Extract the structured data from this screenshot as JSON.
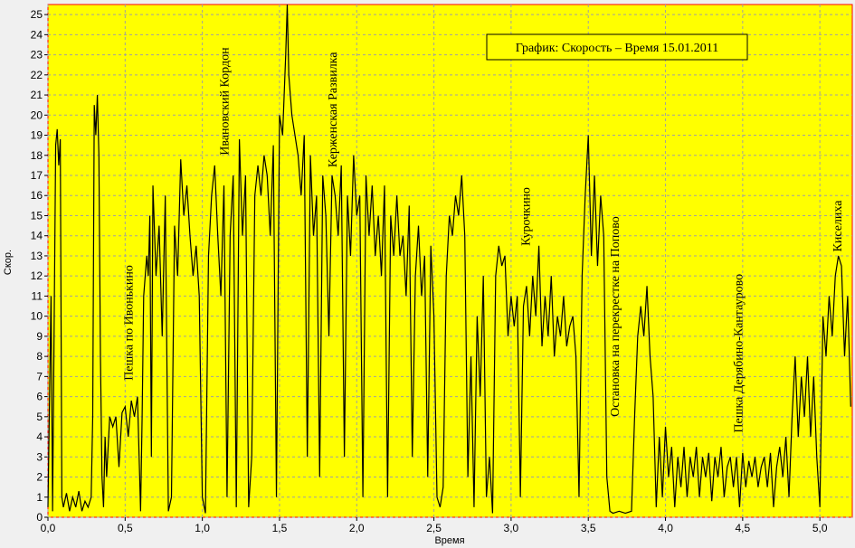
{
  "chart_data": {
    "type": "line",
    "title": "График: Скорость – Время 15.01.2011",
    "x_label": "Время",
    "y_label": "Скор.",
    "xlim": [
      0,
      5.21
    ],
    "ylim": [
      0,
      25.5
    ],
    "xticks": [
      {
        "value": 0,
        "label": "0,0"
      },
      {
        "value": 0.5,
        "label": "0,5"
      },
      {
        "value": 1,
        "label": "1,0"
      },
      {
        "value": 1.5,
        "label": "1,5"
      },
      {
        "value": 2,
        "label": "2,0"
      },
      {
        "value": 2.5,
        "label": "2,5"
      },
      {
        "value": 3,
        "label": "3,0"
      },
      {
        "value": 3.5,
        "label": "3,5"
      },
      {
        "value": 4,
        "label": "4,0"
      },
      {
        "value": 4.5,
        "label": "4,5"
      },
      {
        "value": 5,
        "label": "5,0"
      }
    ],
    "yticks": [
      0,
      1,
      2,
      3,
      4,
      5,
      6,
      7,
      8,
      9,
      10,
      11,
      12,
      13,
      14,
      15,
      16,
      17,
      18,
      19,
      20,
      21,
      22,
      23,
      24,
      25
    ],
    "grid": true,
    "background": "#ffff00",
    "annotations": [
      {
        "text": "Пешка по Ивонькино",
        "x": 0.52,
        "y": 6.8
      },
      {
        "text": "Ивановский Кордон",
        "x": 1.14,
        "y": 18
      },
      {
        "text": "Керженская Развилка",
        "x": 1.84,
        "y": 17.4
      },
      {
        "text": "Курочкино",
        "x": 3.09,
        "y": 13.5
      },
      {
        "text": "Остановка на перекрестке на Попово",
        "x": 3.67,
        "y": 5
      },
      {
        "text": "Пешка Дерябино-Кантаурово",
        "x": 4.47,
        "y": 4.2
      },
      {
        "text": "Киселиха",
        "x": 5.11,
        "y": 13.2
      }
    ],
    "x": [
      0,
      0.02,
      0.03,
      0.05,
      0.06,
      0.07,
      0.08,
      0.09,
      0.1,
      0.12,
      0.14,
      0.16,
      0.18,
      0.2,
      0.22,
      0.24,
      0.26,
      0.28,
      0.29,
      0.3,
      0.31,
      0.32,
      0.33,
      0.34,
      0.35,
      0.36,
      0.37,
      0.38,
      0.4,
      0.42,
      0.44,
      0.46,
      0.48,
      0.5,
      0.52,
      0.54,
      0.56,
      0.58,
      0.6,
      0.61,
      0.62,
      0.64,
      0.65,
      0.66,
      0.67,
      0.68,
      0.7,
      0.72,
      0.74,
      0.76,
      0.78,
      0.8,
      0.82,
      0.84,
      0.86,
      0.88,
      0.9,
      0.92,
      0.94,
      0.96,
      0.98,
      1,
      1.02,
      1.04,
      1.06,
      1.08,
      1.1,
      1.12,
      1.14,
      1.16,
      1.18,
      1.2,
      1.22,
      1.24,
      1.26,
      1.28,
      1.3,
      1.32,
      1.34,
      1.36,
      1.38,
      1.4,
      1.42,
      1.44,
      1.46,
      1.48,
      1.5,
      1.52,
      1.54,
      1.55,
      1.56,
      1.58,
      1.6,
      1.62,
      1.64,
      1.66,
      1.68,
      1.7,
      1.72,
      1.74,
      1.76,
      1.78,
      1.8,
      1.82,
      1.84,
      1.86,
      1.88,
      1.9,
      1.92,
      1.94,
      1.96,
      1.98,
      2,
      2.02,
      2.04,
      2.06,
      2.08,
      2.1,
      2.12,
      2.14,
      2.16,
      2.18,
      2.2,
      2.22,
      2.24,
      2.26,
      2.28,
      2.3,
      2.32,
      2.34,
      2.36,
      2.38,
      2.4,
      2.42,
      2.44,
      2.46,
      2.48,
      2.5,
      2.52,
      2.54,
      2.56,
      2.58,
      2.6,
      2.62,
      2.64,
      2.66,
      2.68,
      2.7,
      2.72,
      2.74,
      2.76,
      2.78,
      2.8,
      2.82,
      2.84,
      2.86,
      2.88,
      2.9,
      2.92,
      2.94,
      2.96,
      2.98,
      3,
      3.02,
      3.04,
      3.06,
      3.08,
      3.1,
      3.12,
      3.14,
      3.16,
      3.18,
      3.2,
      3.22,
      3.24,
      3.26,
      3.28,
      3.3,
      3.32,
      3.34,
      3.36,
      3.38,
      3.4,
      3.42,
      3.44,
      3.46,
      3.48,
      3.5,
      3.52,
      3.54,
      3.56,
      3.58,
      3.6,
      3.62,
      3.64,
      3.66,
      3.7,
      3.74,
      3.78,
      3.8,
      3.82,
      3.84,
      3.86,
      3.88,
      3.9,
      3.92,
      3.94,
      3.96,
      3.98,
      4,
      4.02,
      4.04,
      4.06,
      4.08,
      4.1,
      4.12,
      4.14,
      4.16,
      4.18,
      4.2,
      4.22,
      4.24,
      4.26,
      4.28,
      4.3,
      4.32,
      4.34,
      4.36,
      4.38,
      4.4,
      4.42,
      4.44,
      4.46,
      4.48,
      4.5,
      4.52,
      4.54,
      4.56,
      4.58,
      4.6,
      4.62,
      4.64,
      4.66,
      4.68,
      4.7,
      4.72,
      4.74,
      4.76,
      4.78,
      4.8,
      4.82,
      4.84,
      4.86,
      4.88,
      4.9,
      4.92,
      4.94,
      4.96,
      4.98,
      5,
      5.02,
      5.04,
      5.06,
      5.08,
      5.1,
      5.12,
      5.14,
      5.16,
      5.18,
      5.2
    ],
    "series": [
      {
        "color": "#000000",
        "values": [
          0.5,
          11,
          0.3,
          18.5,
          19.3,
          17.5,
          18.8,
          1,
          0.5,
          1.2,
          0.3,
          1,
          0.5,
          1.3,
          0.3,
          0.8,
          0.5,
          1,
          5,
          20.5,
          19,
          21,
          18,
          8,
          2,
          0.5,
          4,
          2,
          5,
          4.5,
          5,
          2.5,
          5.2,
          5.5,
          4,
          5.8,
          5,
          6,
          0.3,
          5,
          11,
          13,
          12,
          15,
          3,
          16.5,
          12,
          14.5,
          9,
          16,
          0.3,
          1,
          14.5,
          12,
          17.8,
          15,
          16.5,
          14,
          12,
          13.5,
          11,
          1,
          0.2,
          13,
          16,
          17.5,
          14,
          11,
          16.5,
          1,
          14,
          17,
          0.5,
          18.8,
          14,
          17,
          0.5,
          3,
          16,
          17.5,
          16,
          18,
          17,
          14,
          18.5,
          1,
          20,
          19,
          23,
          25.5,
          22,
          20,
          19,
          18,
          16,
          19,
          3,
          18,
          14,
          16,
          2,
          17,
          15,
          9,
          17,
          16,
          14,
          17.5,
          3,
          16,
          13,
          18,
          15,
          16,
          1,
          17,
          14,
          16.5,
          13,
          15,
          12,
          16.5,
          1,
          15,
          13,
          16,
          13,
          14,
          11,
          15.5,
          3,
          12,
          14.5,
          11,
          13,
          2,
          13.5,
          10,
          1,
          0.5,
          1.5,
          12,
          15,
          14,
          16,
          15,
          17,
          14,
          2,
          8,
          0.5,
          10,
          6,
          12,
          1,
          3,
          0.2,
          12,
          13.5,
          12.5,
          13,
          9,
          11,
          9.5,
          11,
          1,
          10.5,
          11.5,
          9,
          12,
          10,
          13.5,
          8.5,
          11,
          9,
          12,
          8,
          10,
          9,
          11,
          8.5,
          9.5,
          10,
          8,
          1,
          12,
          16,
          19,
          13,
          17,
          12.5,
          16,
          14,
          2,
          0.3,
          0.2,
          0.3,
          0.2,
          0.3,
          5,
          9,
          10.5,
          9,
          11.5,
          8,
          6,
          0.5,
          4,
          1,
          4.5,
          2,
          3.5,
          0.5,
          3,
          1.5,
          3.5,
          1,
          3,
          2,
          3.5,
          1,
          3,
          2,
          3.2,
          0.8,
          3,
          2,
          3.5,
          1,
          2.5,
          3,
          1.5,
          3,
          0.5,
          3.2,
          1.5,
          2.8,
          2,
          3,
          1.5,
          2.5,
          3,
          1.5,
          3.2,
          0.5,
          2.5,
          3.5,
          2,
          4,
          1,
          5,
          8,
          4,
          7,
          5,
          8,
          4,
          7,
          3,
          0.5,
          10,
          8,
          11,
          9,
          12,
          13,
          12.5,
          8,
          11,
          5.5
        ]
      }
    ]
  }
}
